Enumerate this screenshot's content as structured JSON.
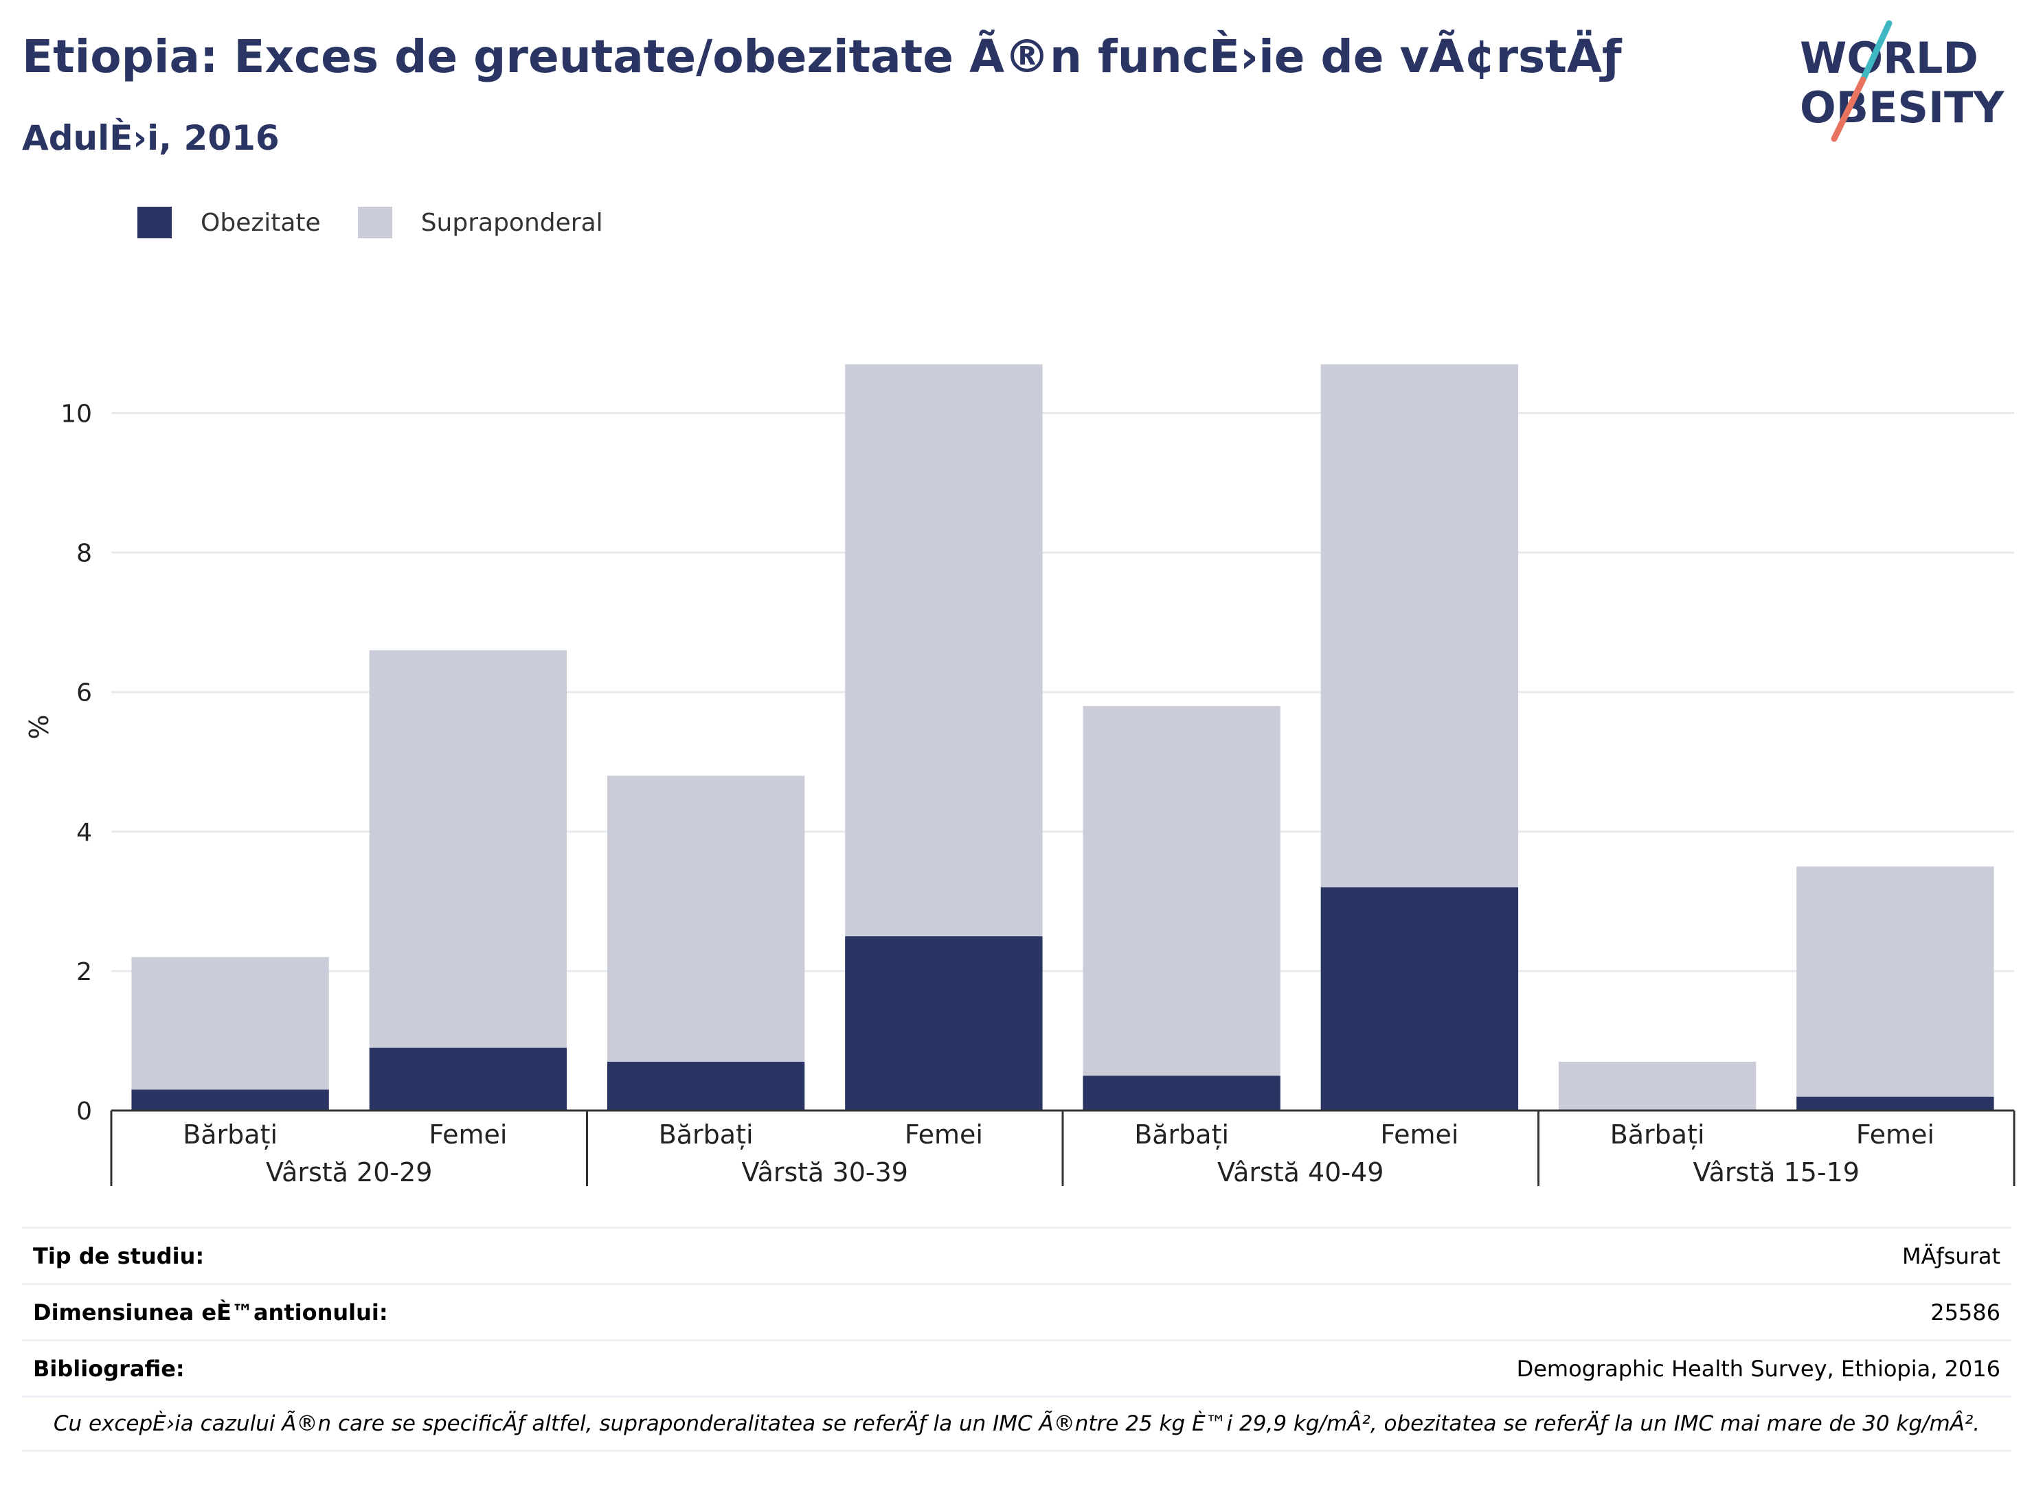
{
  "header": {
    "title": "Etiopia: Exces de greutate/obezitate Ã®n funcÈ›ie de vÃ¢rstÄƒ",
    "subtitle": "AdulÈ›i, 2016"
  },
  "logo": {
    "line1": "WORLD",
    "line2": "OBESITY",
    "colors": {
      "text": "#2a3563",
      "slash_top": "#3fb8c4",
      "slash_bottom": "#e8735e"
    }
  },
  "legend": [
    {
      "label": "Obezitate",
      "color": "#2a3563"
    },
    {
      "label": "Supraponderal",
      "color": "#cacdd9"
    }
  ],
  "chart_data": {
    "type": "bar",
    "stacked": true,
    "title": "Etiopia: Exces de greutate/obezitate Ã®n funcÈ›ie de vÃ¢rstÄƒ",
    "subtitle": "AdulÈ›i, 2016",
    "xlabel": "",
    "ylabel": "%",
    "ylim": [
      0,
      11
    ],
    "yticks": [
      0,
      2,
      4,
      6,
      8,
      10
    ],
    "grid": true,
    "legend_position": "top-left",
    "groups": [
      {
        "label": "Vârstă 20-29",
        "categories": [
          "Bărbați",
          "Femei"
        ]
      },
      {
        "label": "Vârstă 30-39",
        "categories": [
          "Bărbați",
          "Femei"
        ]
      },
      {
        "label": "Vârstă 40-49",
        "categories": [
          "Bărbați",
          "Femei"
        ]
      },
      {
        "label": "Vârstă 15-19",
        "categories": [
          "Bărbați",
          "Femei"
        ]
      }
    ],
    "categories": [
      "Bărbați",
      "Femei",
      "Bărbați",
      "Femei",
      "Bărbați",
      "Femei",
      "Bărbați",
      "Femei"
    ],
    "series": [
      {
        "name": "Obezitate",
        "color": "#2a3563",
        "values": [
          0.3,
          0.9,
          0.7,
          2.5,
          0.5,
          3.2,
          0.0,
          0.2
        ]
      },
      {
        "name": "Supraponderal",
        "color": "#cacdd9",
        "values": [
          1.9,
          5.7,
          4.1,
          8.2,
          5.3,
          7.5,
          0.7,
          3.3
        ]
      }
    ],
    "colors": {
      "grid": "#e8eaee",
      "axis": "#333333",
      "tick_text": "#222222"
    }
  },
  "info": {
    "rows": [
      {
        "key": "Tip de studiu:",
        "value": "MÄƒsurat"
      },
      {
        "key": "Dimensiunea eÈ™antionului:",
        "value": "25586"
      },
      {
        "key": "Bibliografie:",
        "value": "Demographic Health Survey, Ethiopia, 2016"
      }
    ],
    "footnote": "Cu excepÈ›ia cazului Ã®n care se specificÄƒ altfel, supraponderalitatea se referÄƒ la un IMC Ã®ntre 25 kg È™i 29,9 kg/mÂ², obezitatea se referÄƒ la un IMC mai mare de 30 kg/mÂ²."
  }
}
